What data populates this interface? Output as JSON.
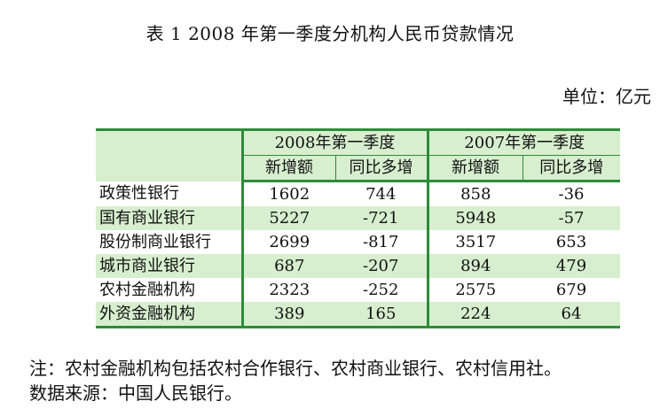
{
  "title": "表 1 2008 年第一季度分机构人民币贷款情况",
  "unit": "单位：亿元",
  "table": {
    "group_headers": [
      "2008年第一季度",
      "2007年第一季度"
    ],
    "sub_headers": [
      "新增额",
      "同比多增",
      "新增额",
      "同比多增"
    ],
    "rows": [
      {
        "name": "政策性银行",
        "v1": "1602",
        "v2": "744",
        "v3": "858",
        "v4": "-36"
      },
      {
        "name": "国有商业银行",
        "v1": "5227",
        "v2": "-721",
        "v3": "5948",
        "v4": "-57"
      },
      {
        "name": "股份制商业银行",
        "v1": "2699",
        "v2": "-817",
        "v3": "3517",
        "v4": "653"
      },
      {
        "name": "城市商业银行",
        "v1": "687",
        "v2": "-207",
        "v3": "894",
        "v4": "479"
      },
      {
        "name": "农村金融机构",
        "v1": "2323",
        "v2": "-252",
        "v3": "2575",
        "v4": "679"
      },
      {
        "name": "外资金融机构",
        "v1": "389",
        "v2": "165",
        "v3": "224",
        "v4": "64"
      }
    ]
  },
  "notes": {
    "note": "注：农村金融机构包括农村合作银行、农村商业银行、农村信用社。",
    "source": "数据来源：中国人民银行。"
  },
  "colors": {
    "rule": "#2e8b3a",
    "shade": "#d7efcf"
  }
}
